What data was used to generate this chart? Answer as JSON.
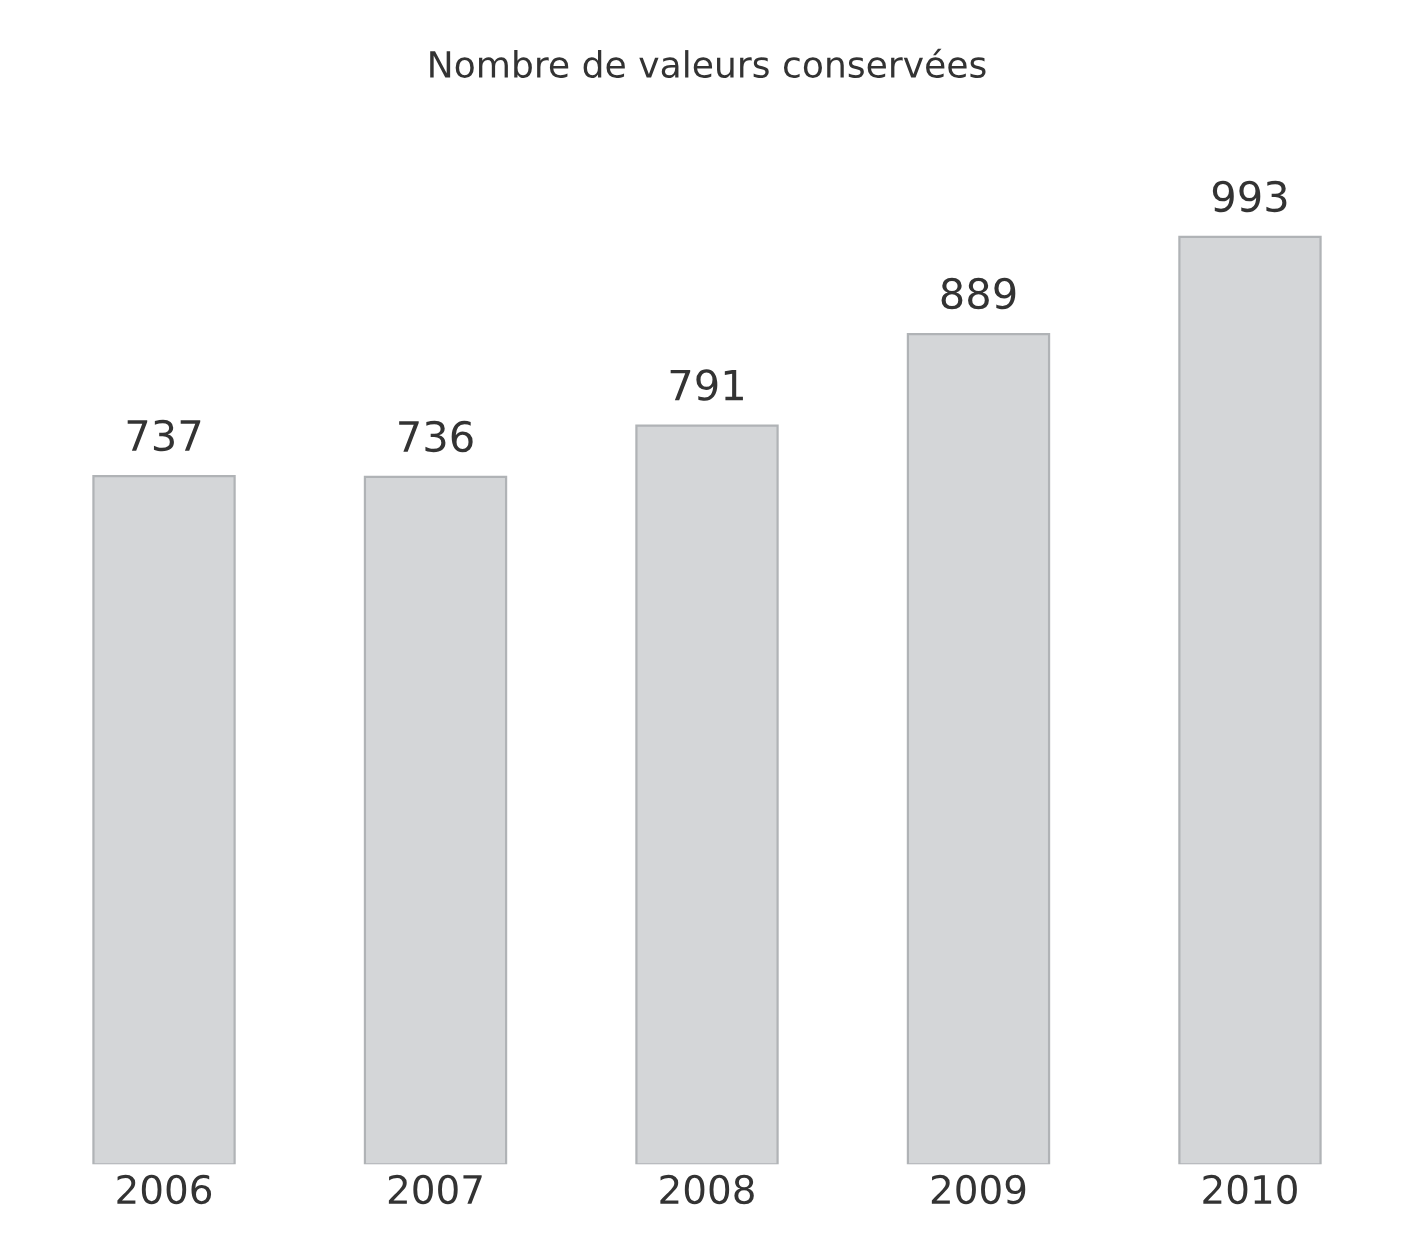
{
  "chart_data": {
    "type": "bar",
    "title": "Nombre de valeurs conservées",
    "categories": [
      "2006",
      "2007",
      "2008",
      "2009",
      "2010"
    ],
    "values": [
      737,
      736,
      791,
      889,
      993
    ],
    "color": "#d4d6d8",
    "data_labels": true,
    "grid": false,
    "legend": false
  }
}
